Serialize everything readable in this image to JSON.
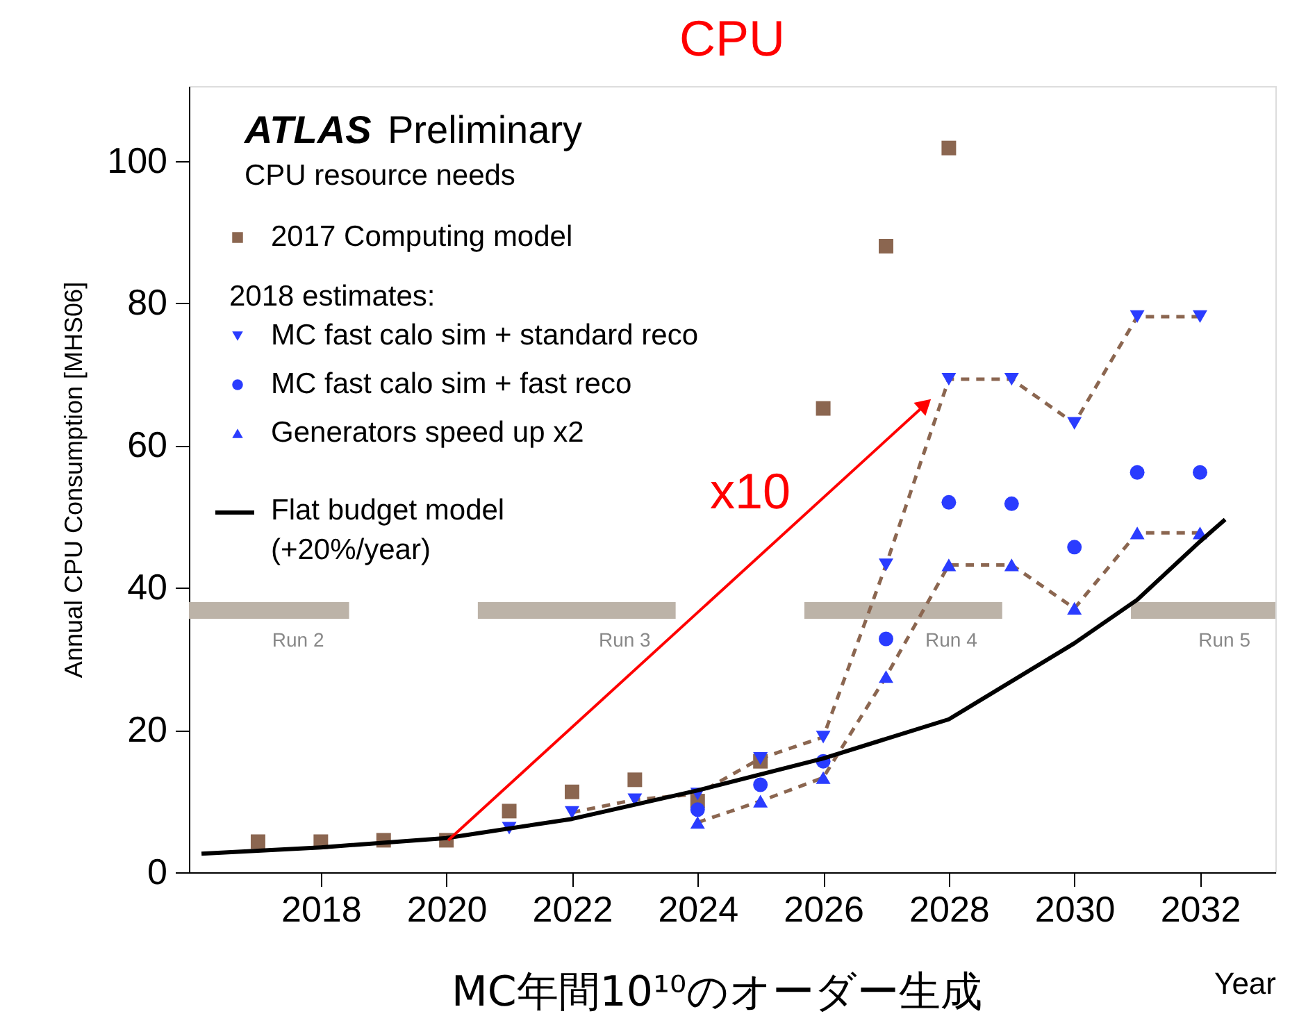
{
  "chart_data": {
    "type": "scatter",
    "title": "CPU",
    "xlabel": "Year",
    "ylabel": "Annual CPU Consumption [MHS06]",
    "xlim": [
      2015.9,
      2033.2
    ],
    "ylim": [
      0,
      110.5
    ],
    "xticks": [
      2018,
      2020,
      2022,
      2024,
      2026,
      2028,
      2030,
      2032
    ],
    "yticks": [
      0,
      20,
      40,
      60,
      80,
      100
    ],
    "grid": false,
    "legend": "top left",
    "annotations": [
      "ATLAS Preliminary",
      "CPU resource needs",
      "2018 estimates:",
      "x10",
      "MC年間10¹⁰のオーダー生成",
      "Run 2",
      "Run 3",
      "Run 4",
      "Run 5"
    ],
    "series": [
      {
        "type": "line",
        "line_style": "solid",
        "marker": "none",
        "color": "#bcb3a8",
        "x": [
          2015.9,
          2018.45,
          2019.5,
          2020.5,
          2023.65,
          2024.7,
          2025.7,
          2028.85,
          2029.9,
          2030.9,
          2033.2
        ],
        "values": [
          36.8,
          36.8,
          null,
          36.8,
          36.8,
          null,
          36.8,
          36.8,
          null,
          36.8,
          36.8
        ]
      },
      {
        "name": "2017 Computing model",
        "marker": "square",
        "color": "#8b6650",
        "x": [
          2017,
          2018,
          2019,
          2020,
          2021,
          2022,
          2023,
          2024,
          2025,
          2026,
          2027,
          2028
        ],
        "values": [
          4.3,
          4.3,
          4.5,
          4.5,
          8.6,
          11.3,
          13,
          10,
          15.6,
          65.2,
          88,
          101.8
        ]
      },
      {
        "type": "line",
        "line_style": "dashed",
        "marker": "none",
        "color": "#8b6650",
        "x": [
          2022,
          2023,
          2024,
          2025,
          2026,
          2027,
          2028,
          2029,
          2030,
          2031,
          2032
        ],
        "values": [
          8.4,
          10.2,
          11,
          16,
          19,
          43.2,
          69.3,
          69.3,
          63.1,
          78.1,
          78.1
        ]
      },
      {
        "type": "line",
        "line_style": "dashed",
        "marker": "none",
        "color": "#8b6650",
        "x": [
          2024,
          2025,
          2026,
          2027,
          2028,
          2029,
          2030,
          2031,
          2032
        ],
        "values": [
          7,
          10,
          13.3,
          27.5,
          43.2,
          43.2,
          37.1,
          47.7,
          47.7
        ]
      },
      {
        "name": "MC fast calo sim + standard reco",
        "marker": "triangle-down",
        "color": "#2a3cff",
        "x": [
          2021,
          2022,
          2023,
          2024,
          2025,
          2026,
          2027,
          2028,
          2029,
          2030,
          2031,
          2032
        ],
        "values": [
          6.2,
          8.4,
          10.2,
          11,
          16,
          19,
          43.2,
          69.3,
          69.3,
          63.1,
          78.1,
          78.1
        ]
      },
      {
        "name": "MC fast calo sim + fast reco",
        "marker": "circle",
        "color": "#2a3cff",
        "x": [
          2024,
          2025,
          2026,
          2027,
          2028,
          2029,
          2030,
          2031,
          2032
        ],
        "values": [
          8.8,
          12.3,
          15.6,
          32.8,
          52,
          51.8,
          45.7,
          56.2,
          56.2
        ]
      },
      {
        "name": "Generators speed up x2",
        "marker": "triangle",
        "color": "#2a3cff",
        "x": [
          2024,
          2025,
          2026,
          2027,
          2028,
          2029,
          2030,
          2031,
          2032
        ],
        "values": [
          7,
          10,
          13.3,
          27.5,
          43.2,
          43.2,
          37.1,
          47.7,
          47.7
        ]
      },
      {
        "name": "Flat budget model\n(+20%/year)",
        "type": "line",
        "line_style": "solid",
        "marker": "none",
        "color": "#000000",
        "x": [
          2016.1,
          2018,
          2020,
          2022,
          2024,
          2026,
          2028,
          2030,
          2031,
          2032,
          2032.4
        ],
        "values": [
          2.6,
          3.5,
          4.8,
          7.5,
          11.5,
          16,
          21.5,
          32.2,
          38.3,
          46.5,
          49.6
        ]
      }
    ]
  }
}
